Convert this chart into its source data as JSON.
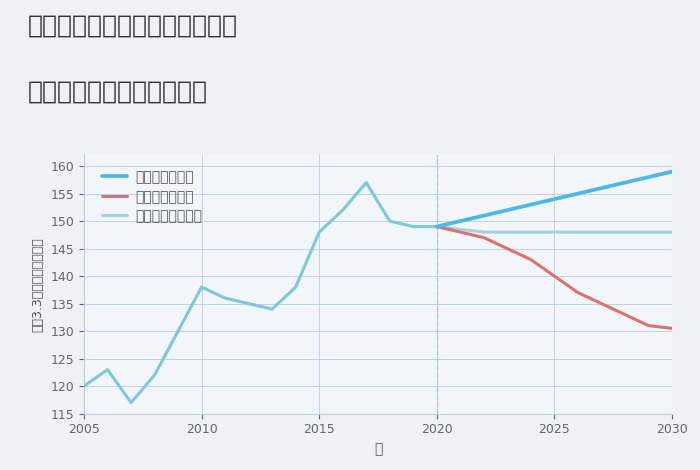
{
  "title_line1": "大阪府大阪市東住吉区北田辺の",
  "title_line2": "中古マンションの価格推移",
  "xlabel": "年",
  "ylabel": "坪（3.3㎡）単価（万円）",
  "bg_color": "#eef2f7",
  "plot_bg_color": "#f2f6fb",
  "grid_color": "#b8cfe0",
  "xlim": [
    2005,
    2030
  ],
  "ylim": [
    115,
    162
  ],
  "yticks": [
    115,
    120,
    125,
    130,
    135,
    140,
    145,
    150,
    155,
    160
  ],
  "xticks": [
    2005,
    2010,
    2015,
    2020,
    2025,
    2030
  ],
  "historical_years": [
    2005,
    2006,
    2007,
    2008,
    2009,
    2010,
    2011,
    2012,
    2013,
    2014,
    2015,
    2016,
    2017,
    2018,
    2019,
    2020
  ],
  "historical_values": [
    120,
    123,
    117,
    122,
    130,
    138,
    136,
    135,
    134,
    138,
    148,
    152,
    157,
    150,
    149,
    149
  ],
  "good_years": [
    2020,
    2021,
    2022,
    2023,
    2024,
    2025,
    2026,
    2027,
    2028,
    2029,
    2030
  ],
  "good_values": [
    149,
    150,
    151,
    152,
    153,
    154,
    155,
    156,
    157,
    158,
    159
  ],
  "bad_years": [
    2020,
    2021,
    2022,
    2023,
    2024,
    2025,
    2026,
    2027,
    2028,
    2029,
    2030
  ],
  "bad_values": [
    149,
    148,
    147,
    145,
    143,
    140,
    137,
    135,
    133,
    131,
    130.5
  ],
  "normal_years": [
    2020,
    2021,
    2022,
    2023,
    2024,
    2025,
    2026,
    2027,
    2028,
    2029,
    2030
  ],
  "normal_values": [
    149,
    148.5,
    148,
    148,
    148,
    148,
    148,
    148,
    148,
    148,
    148
  ],
  "color_good": "#4db8e8",
  "color_bad": "#d9736e",
  "color_normal": "#a8d0e0",
  "color_historical": "#7ec8d8",
  "line_width": 2.2,
  "legend_labels": [
    "グッドシナリオ",
    "バッドシナリオ",
    "ノーマルシナリオ"
  ],
  "vline_x": 2020,
  "vline_color": "#aac8dd",
  "title_fontsize": 18,
  "axis_label_fontsize": 10,
  "tick_fontsize": 9,
  "legend_fontsize": 10
}
